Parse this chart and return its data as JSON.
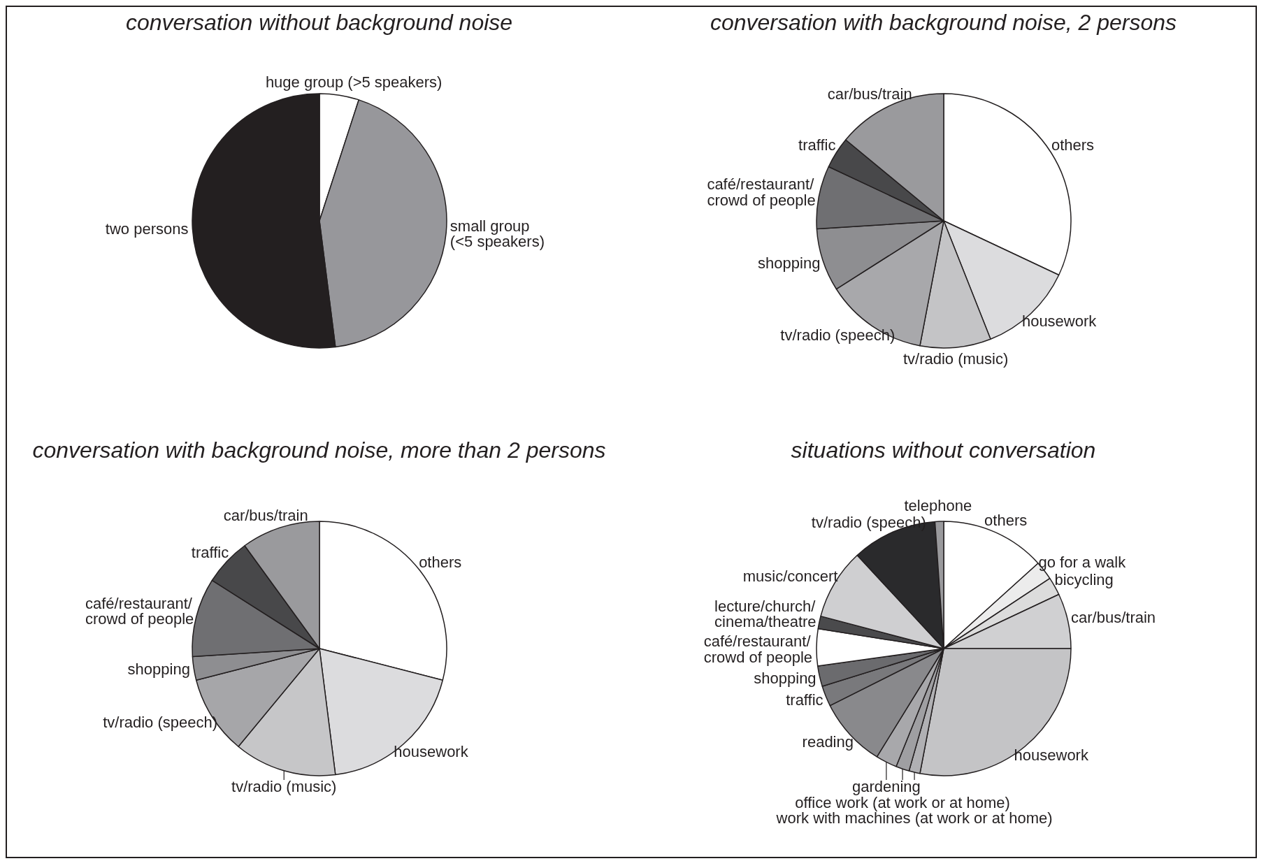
{
  "chart_data": [
    {
      "type": "pie",
      "title": "conversation without background noise",
      "categories": [
        "huge group (>5 speakers)",
        "small group\n(<5 speakers)",
        "two persons"
      ],
      "values": [
        5,
        43,
        52
      ],
      "colors": [
        "#ffffff",
        "#97979b",
        "#231f20"
      ]
    },
    {
      "type": "pie",
      "title": "conversation with background noise, 2 persons",
      "categories": [
        "others",
        "housework",
        "tv/radio (music)",
        "tv/radio (speech)",
        "shopping",
        "café/restaurant/\ncrowd of people",
        "traffic",
        "car/bus/train"
      ],
      "values": [
        32,
        12,
        9,
        13,
        8,
        8,
        4,
        14
      ],
      "colors": [
        "#ffffff",
        "#dcdcde",
        "#c4c4c6",
        "#a8a8ab",
        "#8e8e91",
        "#6f6f72",
        "#48484a",
        "#9a9a9d"
      ]
    },
    {
      "type": "pie",
      "title": "conversation with background noise, more than 2 persons",
      "categories": [
        "others",
        "housework",
        "tv/radio (music)",
        "tv/radio (speech)",
        "shopping",
        "café/restaurant/\ncrowd of people",
        "traffic",
        "car/bus/train"
      ],
      "values": [
        29,
        19,
        13,
        10,
        3,
        10,
        6,
        10
      ],
      "colors": [
        "#ffffff",
        "#dcdcde",
        "#c6c6c8",
        "#a6a6a9",
        "#8e8e91",
        "#6f6f72",
        "#48484a",
        "#9a9a9d"
      ]
    },
    {
      "type": "pie",
      "title": "situations without conversation",
      "categories": [
        "others",
        "go for a walk",
        "bicycling",
        "car/bus/train",
        "housework",
        "work with machines (at work or at home)",
        "office work (at work or at home)",
        "gardening",
        "reading",
        "traffic",
        "shopping",
        "café/restaurant/\ncrowd of people",
        "lecture/church/\ncinema/theatre",
        "music/concert",
        "tv/radio (speech)",
        "telephone"
      ],
      "values": [
        13.3,
        2.4,
        2.3,
        7.0,
        28.0,
        1.4,
        1.7,
        2.7,
        8.8,
        2.6,
        2.6,
        4.7,
        1.6,
        9.0,
        10.8,
        1.1
      ],
      "colors": [
        "#ffffff",
        "#ececec",
        "#dcdcdc",
        "#d0d0d2",
        "#c4c4c6",
        "#b0b0b3",
        "#9f9fa2",
        "#a8a8ab",
        "#89898c",
        "#79797c",
        "#6b6b6e",
        "#ffffff",
        "#4a4a4c",
        "#cfcfd1",
        "#2a2a2c",
        "#9a9a9d"
      ]
    }
  ]
}
